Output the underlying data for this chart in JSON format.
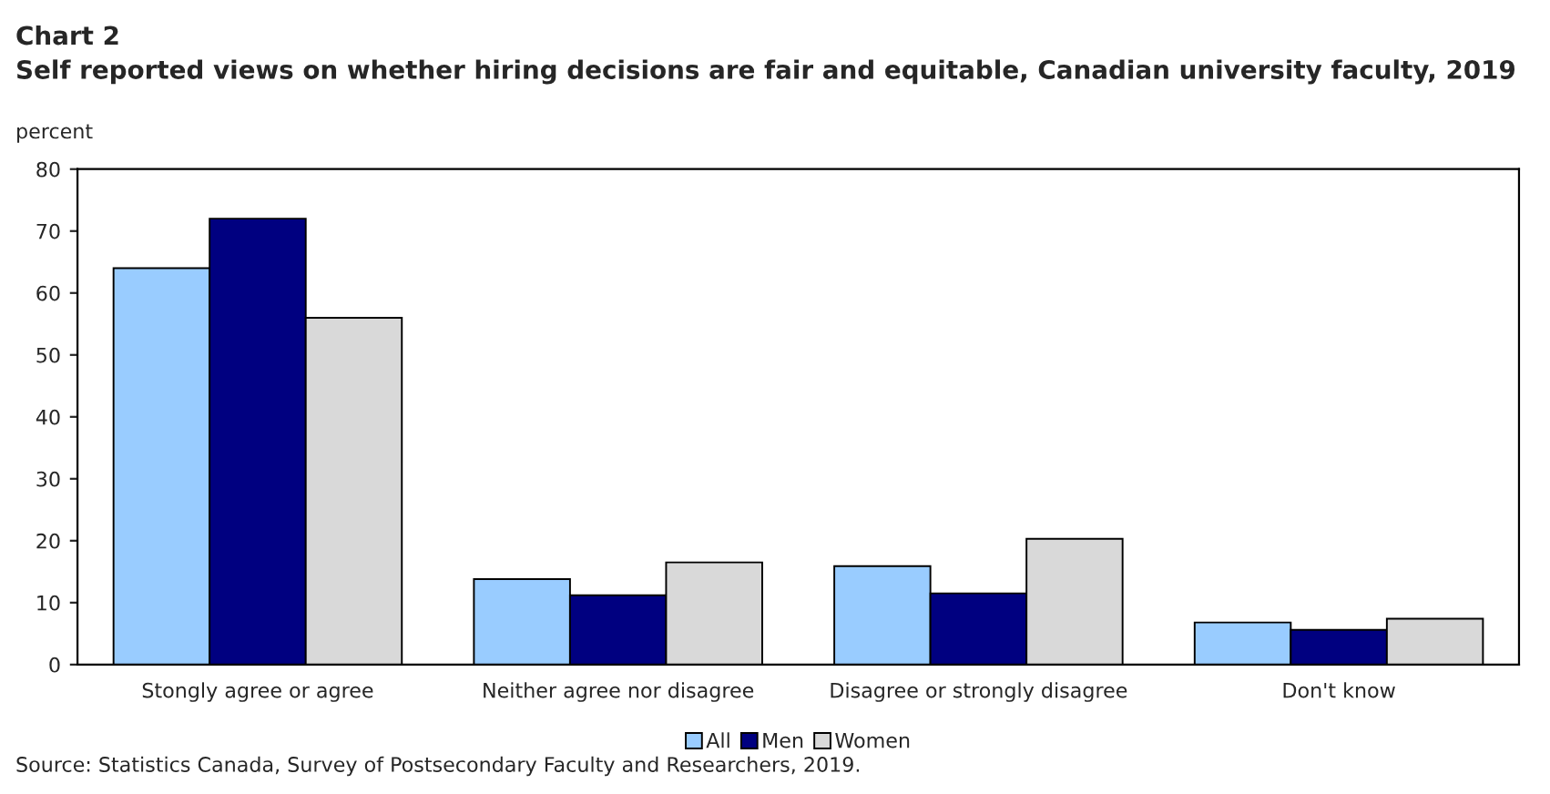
{
  "chart_data": {
    "type": "bar",
    "title": "Chart 2",
    "subtitle": "Self reported views on whether hiring decisions are fair and equitable, Canadian university faculty, 2019",
    "ylabel": "percent",
    "categories": [
      "Stongly agree or agree",
      "Neither agree nor disagree",
      "Disagree or strongly disagree",
      "Don't know"
    ],
    "series": [
      {
        "name": "All",
        "color": "#99ccff",
        "values": [
          64,
          13.8,
          15.9,
          6.8
        ]
      },
      {
        "name": "Men",
        "color": "#000080",
        "values": [
          72,
          11.2,
          11.5,
          5.6
        ]
      },
      {
        "name": "Women",
        "color": "#d9d9d9",
        "values": [
          56,
          16.5,
          20.3,
          7.4
        ]
      }
    ],
    "ylim": [
      0,
      80
    ],
    "yticks": [
      0,
      10,
      20,
      30,
      40,
      50,
      60,
      70,
      80
    ],
    "grid": false,
    "legend": "bottom",
    "annotations": [
      "Source: Statistics Canada, Survey of Postsecondary Faculty and Researchers, 2019."
    ]
  }
}
